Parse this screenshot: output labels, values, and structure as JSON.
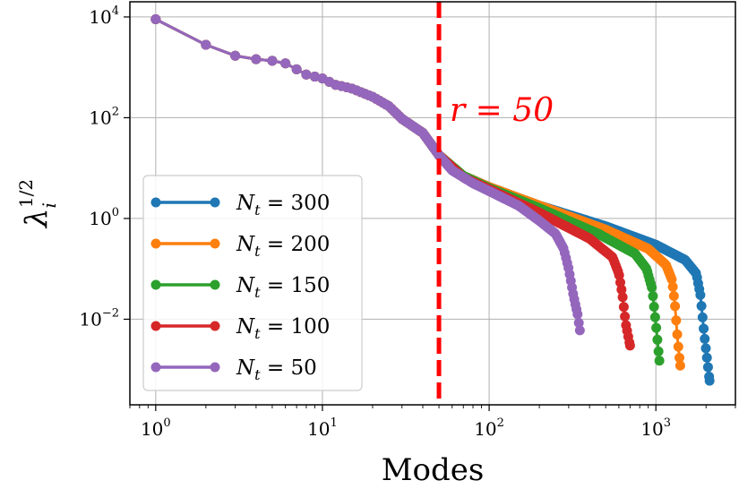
{
  "chart_data": {
    "type": "line",
    "xlabel": "Modes",
    "ylabel_base": "λ",
    "ylabel_sub": "i",
    "ylabel_sup": "1/2",
    "x_scale": "log",
    "y_scale": "log",
    "xlim": [
      0.7,
      3000
    ],
    "ylim": [
      0.0002,
      20000
    ],
    "grid": true,
    "legend_position": "lower-left",
    "x_ticks": [
      {
        "value": 1,
        "base": "10",
        "exp": "0"
      },
      {
        "value": 10,
        "base": "10",
        "exp": "1"
      },
      {
        "value": 100,
        "base": "10",
        "exp": "2"
      },
      {
        "value": 1000,
        "base": "10",
        "exp": "3"
      }
    ],
    "y_ticks": [
      {
        "value": 0.01,
        "base": "10",
        "exp": "−2"
      },
      {
        "value": 1,
        "base": "10",
        "exp": "0"
      },
      {
        "value": 100,
        "base": "10",
        "exp": "2"
      },
      {
        "value": 10000,
        "base": "10",
        "exp": "4"
      }
    ],
    "vline": {
      "x": 50,
      "color": "#ff0000",
      "label": "r = 50"
    },
    "common_x": [
      1,
      2,
      3,
      4,
      5,
      6,
      8,
      10,
      12,
      15,
      20,
      25,
      30,
      40,
      50
    ],
    "common_y": [
      9000,
      2800,
      1700,
      1450,
      1350,
      1200,
      720,
      600,
      450,
      380,
      260,
      170,
      95,
      50,
      18
    ],
    "series": [
      {
        "name": "N",
        "sub": "t",
        "value": "300",
        "color": "#1f77b4",
        "n": 2100,
        "tail_x": [
          70,
          100,
          200,
          500,
          1000,
          1500,
          1750,
          1850,
          1950,
          2050,
          2100
        ],
        "tail_y": [
          7,
          4.2,
          1.8,
          0.7,
          0.3,
          0.15,
          0.08,
          0.03,
          0.005,
          0.0012,
          0.0006
        ]
      },
      {
        "name": "N",
        "sub": "t",
        "value": "200",
        "color": "#ff7f0e",
        "n": 1400,
        "tail_x": [
          70,
          100,
          200,
          500,
          900,
          1150,
          1250,
          1300,
          1350,
          1400
        ],
        "tail_y": [
          7,
          4.2,
          1.8,
          0.6,
          0.25,
          0.12,
          0.06,
          0.02,
          0.004,
          0.0012
        ]
      },
      {
        "name": "N",
        "sub": "t",
        "value": "150",
        "color": "#2ca02c",
        "n": 1050,
        "tail_x": [
          70,
          100,
          200,
          450,
          750,
          880,
          950,
          1000,
          1050
        ],
        "tail_y": [
          7,
          4.0,
          1.6,
          0.5,
          0.2,
          0.1,
          0.04,
          0.008,
          0.0015
        ]
      },
      {
        "name": "N",
        "sub": "t",
        "value": "100",
        "color": "#d62728",
        "n": 700,
        "tail_x": [
          70,
          100,
          200,
          400,
          550,
          600,
          630,
          660,
          700
        ],
        "tail_y": [
          6.5,
          3.8,
          1.3,
          0.4,
          0.17,
          0.08,
          0.03,
          0.008,
          0.003
        ]
      },
      {
        "name": "N",
        "sub": "t",
        "value": "50",
        "color": "#9467bd",
        "n": 350,
        "tail_x": [
          60,
          80,
          100,
          150,
          200,
          250,
          280,
          300,
          320,
          340,
          350
        ],
        "tail_y": [
          9,
          5,
          3.5,
          1.8,
          0.9,
          0.5,
          0.25,
          0.1,
          0.03,
          0.012,
          0.006
        ]
      }
    ]
  }
}
